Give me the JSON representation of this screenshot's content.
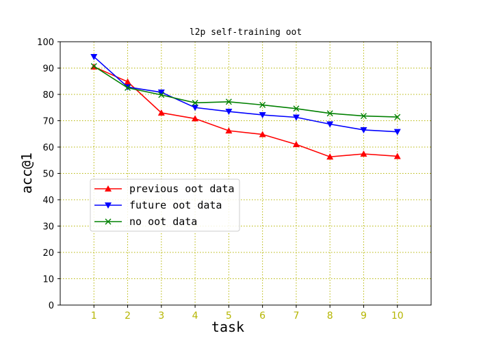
{
  "chart_data": {
    "type": "line",
    "title": "l2p self-training oot",
    "xlabel": "task",
    "ylabel": "acc@1",
    "x": [
      1,
      2,
      3,
      4,
      5,
      6,
      7,
      8,
      9,
      10
    ],
    "xlim": [
      0,
      11
    ],
    "ylim": [
      0,
      100
    ],
    "yticks": [
      0,
      10,
      20,
      30,
      40,
      50,
      60,
      70,
      80,
      90,
      100
    ],
    "grid": true,
    "legend_position": "center-left",
    "tick_label_color_x": "#b5b500",
    "grid_color": "#b5b500",
    "series": [
      {
        "name": "previous oot data",
        "color": "#ff0000",
        "marker": "triangle-up",
        "values": [
          90.5,
          84.8,
          73.0,
          70.8,
          66.2,
          64.8,
          61.0,
          56.3,
          57.4,
          56.5
        ]
      },
      {
        "name": "future oot data",
        "color": "#0000ff",
        "marker": "triangle-down",
        "values": [
          94.3,
          82.8,
          80.8,
          75.0,
          73.5,
          72.2,
          71.3,
          68.7,
          66.5,
          65.8
        ]
      },
      {
        "name": "no oot data",
        "color": "#008000",
        "marker": "x",
        "values": [
          90.7,
          82.5,
          79.8,
          76.8,
          77.2,
          76.0,
          74.6,
          72.8,
          71.8,
          71.4
        ]
      }
    ]
  }
}
